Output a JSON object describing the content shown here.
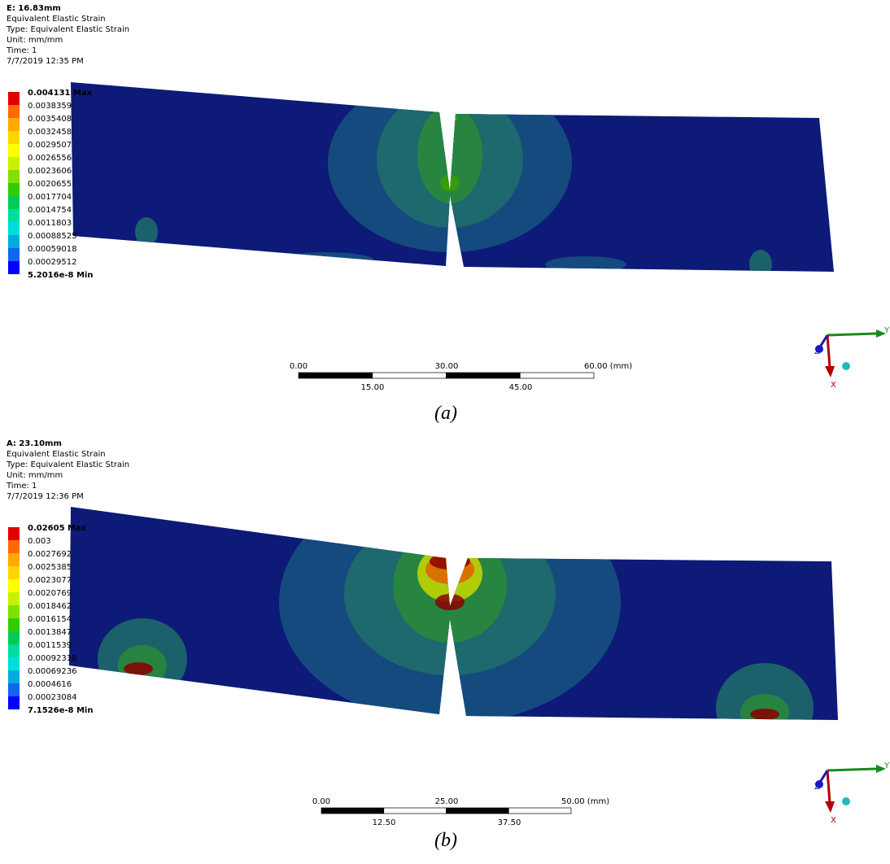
{
  "panels": [
    {
      "header": [
        "E: 16.83mm",
        "Equivalent Elastic Strain",
        "Type: Equivalent Elastic Strain",
        "Unit: mm/mm",
        "Time: 1",
        "7/7/2019 12:35 PM"
      ],
      "legend": [
        "0.004131 Max",
        "0.0038359",
        "0.0035408",
        "0.0032458",
        "0.0029507",
        "0.0026556",
        "0.0023606",
        "0.0020655",
        "0.0017704",
        "0.0014754",
        "0.0011803",
        "0.00088525",
        "0.00059018",
        "0.00029512",
        "5.2016e-8 Min"
      ],
      "scale_top": [
        "0.00",
        "30.00",
        "60.00 (mm)"
      ],
      "scale_bottom": [
        "15.00",
        "45.00"
      ],
      "triad": [
        "Y",
        "Z",
        "X"
      ],
      "caption": "(a)"
    },
    {
      "header": [
        "A: 23.10mm",
        "Equivalent Elastic Strain",
        "Type: Equivalent Elastic Strain",
        "Unit: mm/mm",
        "Time: 1",
        "7/7/2019 12:36 PM"
      ],
      "legend": [
        "0.02605 Max",
        "0.003",
        "0.0027692",
        "0.0025385",
        "0.0023077",
        "0.0020769",
        "0.0018462",
        "0.0016154",
        "0.0013847",
        "0.0011539",
        "0.00092318",
        "0.00069236",
        "0.0004616",
        "0.00023084",
        "7.1526e-8 Min"
      ],
      "scale_top": [
        "0.00",
        "25.00",
        "50.00 (mm)"
      ],
      "scale_bottom": [
        "12.50",
        "37.50"
      ],
      "triad": [
        "Y",
        "Z",
        "X"
      ],
      "caption": "(b)"
    }
  ]
}
